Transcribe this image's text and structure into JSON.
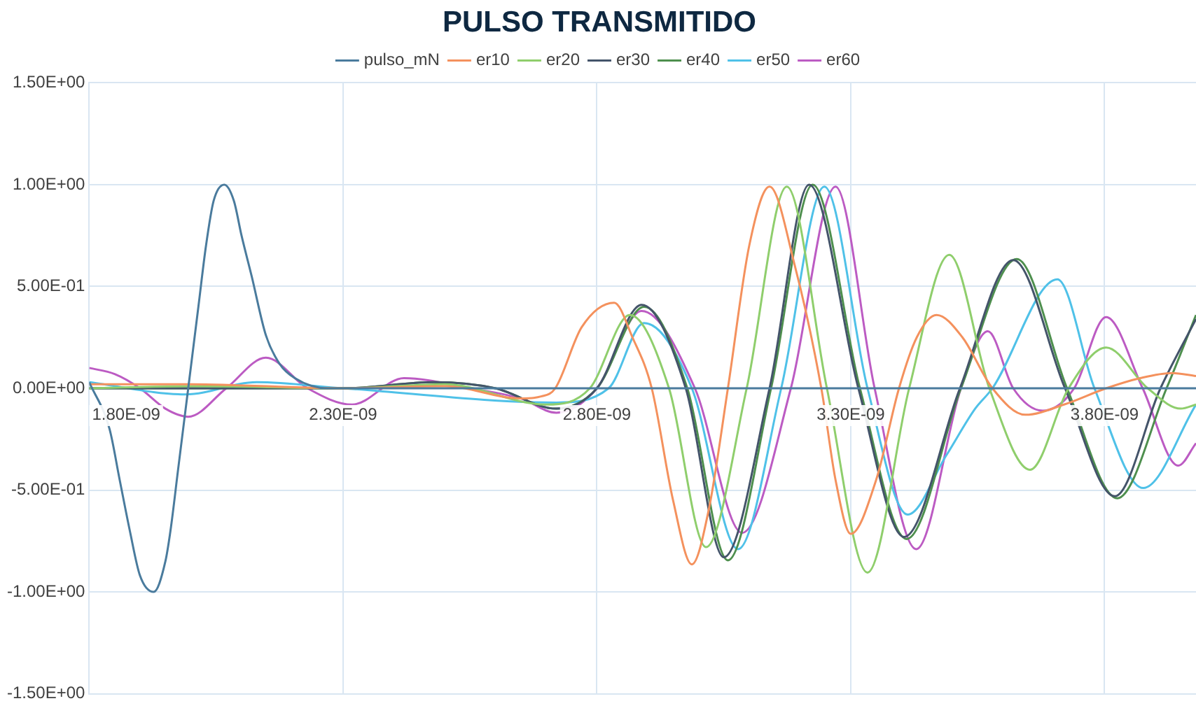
{
  "chart_data": {
    "type": "line",
    "title": "PULSO TRANSMITIDO",
    "xlim": [
      1.8e-09,
      3.98e-09
    ],
    "xticks": [
      {
        "value": 1.8e-09,
        "label": "1.80E-09"
      },
      {
        "value": 2.3e-09,
        "label": "2.30E-09"
      },
      {
        "value": 2.8e-09,
        "label": "2.80E-09"
      },
      {
        "value": 3.3e-09,
        "label": "3.30E-09"
      },
      {
        "value": 3.8e-09,
        "label": "3.80E-09"
      }
    ],
    "ylim": [
      -1.5,
      1.5
    ],
    "yticks": [
      {
        "value": -1.5,
        "label": "-1.50E+00"
      },
      {
        "value": -1,
        "label": "-1.00E+00"
      },
      {
        "value": -0.5,
        "label": "-5.00E-01"
      },
      {
        "value": 0,
        "label": "0.00E+00"
      },
      {
        "value": 0.5,
        "label": "5.00E-01"
      },
      {
        "value": 1,
        "label": "1.00E+00"
      },
      {
        "value": 1.5,
        "label": "1.50E+00"
      }
    ],
    "grid": true,
    "legend": "top",
    "series": [
      {
        "name": "pulso_mN",
        "color": "#4a7b9d",
        "x": [
          1.8e-09,
          1.84e-09,
          1.86e-09,
          1.88e-09,
          1.9e-09,
          1.927e-09,
          1.95e-09,
          1.96e-09,
          1.975e-09,
          1.995e-09,
          2.015e-09,
          2.03e-09,
          2.045e-09,
          2.066e-09,
          2.085e-09,
          2.1e-09,
          2.12e-09,
          2.148e-09,
          2.175e-09,
          2.205e-09,
          2.27e-09,
          3.98e-09
        ],
        "values": [
          0.03,
          -0.2,
          -0.45,
          -0.7,
          -0.92,
          -1.0,
          -0.85,
          -0.7,
          -0.4,
          0,
          0.4,
          0.7,
          0.92,
          1.0,
          0.92,
          0.75,
          0.55,
          0.26,
          0.12,
          0.05,
          0,
          0
        ]
      },
      {
        "name": "er10",
        "color": "#f4915d",
        "x": [
          1.8e-09,
          2e-09,
          2.3e-09,
          2.5e-09,
          2.65e-09,
          2.69e-09,
          2.718e-09,
          2.77e-09,
          2.834e-09,
          2.87e-09,
          2.908e-09,
          2.95e-09,
          2.987e-09,
          3.02e-09,
          3.058e-09,
          3.1e-09,
          3.14e-09,
          3.19e-09,
          3.242e-09,
          3.27e-09,
          3.3e-09,
          3.35e-09,
          3.395e-09,
          3.43e-09,
          3.469e-09,
          3.52e-09,
          3.579e-09,
          3.644e-09,
          3.72e-09,
          3.803e-09,
          3.87e-09,
          3.933e-09,
          3.98e-09
        ],
        "values": [
          0.02,
          0.02,
          0,
          0.01,
          -0.05,
          -0.04,
          0,
          0.3,
          0.42,
          0.25,
          0,
          -0.55,
          -0.865,
          -0.6,
          0,
          0.7,
          0.99,
          0.6,
          0,
          -0.45,
          -0.715,
          -0.45,
          0,
          0.25,
          0.36,
          0.25,
          0,
          -0.13,
          -0.08,
          0,
          0.05,
          0.075,
          0.06
        ]
      },
      {
        "name": "er20",
        "color": "#8fce6c",
        "x": [
          1.8e-09,
          2e-09,
          2.3e-09,
          2.5e-09,
          2.7e-09,
          2.786e-09,
          2.865e-09,
          2.942e-09,
          3.015e-09,
          3.095e-09,
          3.174e-09,
          3.253e-09,
          3.333e-09,
          3.415e-09,
          3.494e-09,
          3.573e-09,
          3.653e-09,
          3.729e-09,
          3.803e-09,
          3.885e-09,
          3.95e-09,
          3.98e-09
        ],
        "values": [
          0,
          0.01,
          0,
          0.02,
          -0.08,
          0,
          0.36,
          0,
          -0.78,
          0,
          0.99,
          0,
          -0.905,
          0,
          0.655,
          0,
          -0.4,
          0,
          0.2,
          0,
          -0.1,
          -0.08
        ]
      },
      {
        "name": "er30",
        "color": "#44546a",
        "x": [
          1.8e-09,
          2e-09,
          2.3e-09,
          2.48e-09,
          2.6e-09,
          2.72e-09,
          2.8e-09,
          2.888e-09,
          2.975e-09,
          3.05e-09,
          3.14e-09,
          3.218e-09,
          3.315e-09,
          3.405e-09,
          3.515e-09,
          3.62e-09,
          3.722e-09,
          3.82e-09,
          3.91e-09,
          3.98e-09
        ],
        "values": [
          0,
          0,
          0,
          0.03,
          0,
          -0.1,
          0,
          0.41,
          0,
          -0.83,
          0,
          1.0,
          0,
          -0.73,
          0,
          0.63,
          0,
          -0.53,
          0,
          0.34
        ]
      },
      {
        "name": "er40",
        "color": "#4e8f4e",
        "x": [
          1.8e-09,
          2e-09,
          2.3e-09,
          2.48e-09,
          2.6e-09,
          2.72e-09,
          2.8e-09,
          2.893e-09,
          2.978e-09,
          3.058e-09,
          3.143e-09,
          3.225e-09,
          3.318e-09,
          3.41e-09,
          3.517e-09,
          3.627e-09,
          3.726e-09,
          3.825e-09,
          3.922e-09,
          3.98e-09
        ],
        "values": [
          0,
          0,
          0,
          0.03,
          0,
          -0.1,
          0,
          0.4,
          0,
          -0.845,
          0,
          1.0,
          0,
          -0.74,
          0,
          0.635,
          0,
          -0.54,
          0,
          0.36
        ]
      },
      {
        "name": "er50",
        "color": "#4fc1e8",
        "x": [
          1.8e-09,
          1.99e-09,
          2.13e-09,
          2.3e-09,
          2.72e-09,
          2.823e-09,
          2.893e-09,
          2.987e-09,
          3.078e-09,
          3.163e-09,
          3.248e-09,
          3.333e-09,
          3.412e-09,
          3.488e-09,
          3.545e-09,
          3.579e-09,
          3.707e-09,
          3.78e-09,
          3.876e-09,
          3.98e-09
        ],
        "values": [
          0.03,
          -0.03,
          0.03,
          0,
          -0.07,
          0,
          0.32,
          0,
          -0.79,
          0,
          0.99,
          0,
          -0.62,
          -0.33,
          -0.1,
          0,
          0.535,
          0,
          -0.49,
          -0.08
        ]
      },
      {
        "name": "er60",
        "color": "#bc5bc3",
        "x": [
          1.8e-09,
          1.85e-09,
          1.9e-09,
          1.95e-09,
          1.995e-09,
          2.07e-09,
          2.148e-09,
          2.23e-09,
          2.318e-09,
          2.42e-09,
          2.55e-09,
          2.65e-09,
          2.72e-09,
          2.8e-09,
          2.888e-09,
          2.993e-09,
          3.086e-09,
          3.182e-09,
          3.27e-09,
          3.347e-09,
          3.429e-09,
          3.517e-09,
          3.57e-09,
          3.62e-09,
          3.678e-09,
          3.74e-09,
          3.803e-09,
          3.875e-09,
          3.945e-09,
          3.98e-09
        ],
        "values": [
          0.1,
          0.07,
          0,
          -0.1,
          -0.14,
          0,
          0.15,
          0,
          -0.08,
          0.05,
          0,
          -0.05,
          -0.12,
          0,
          0.38,
          0,
          -0.71,
          0,
          0.99,
          0,
          -0.79,
          0,
          0.28,
          0,
          -0.11,
          0,
          0.35,
          0,
          -0.38,
          -0.27
        ]
      }
    ]
  }
}
